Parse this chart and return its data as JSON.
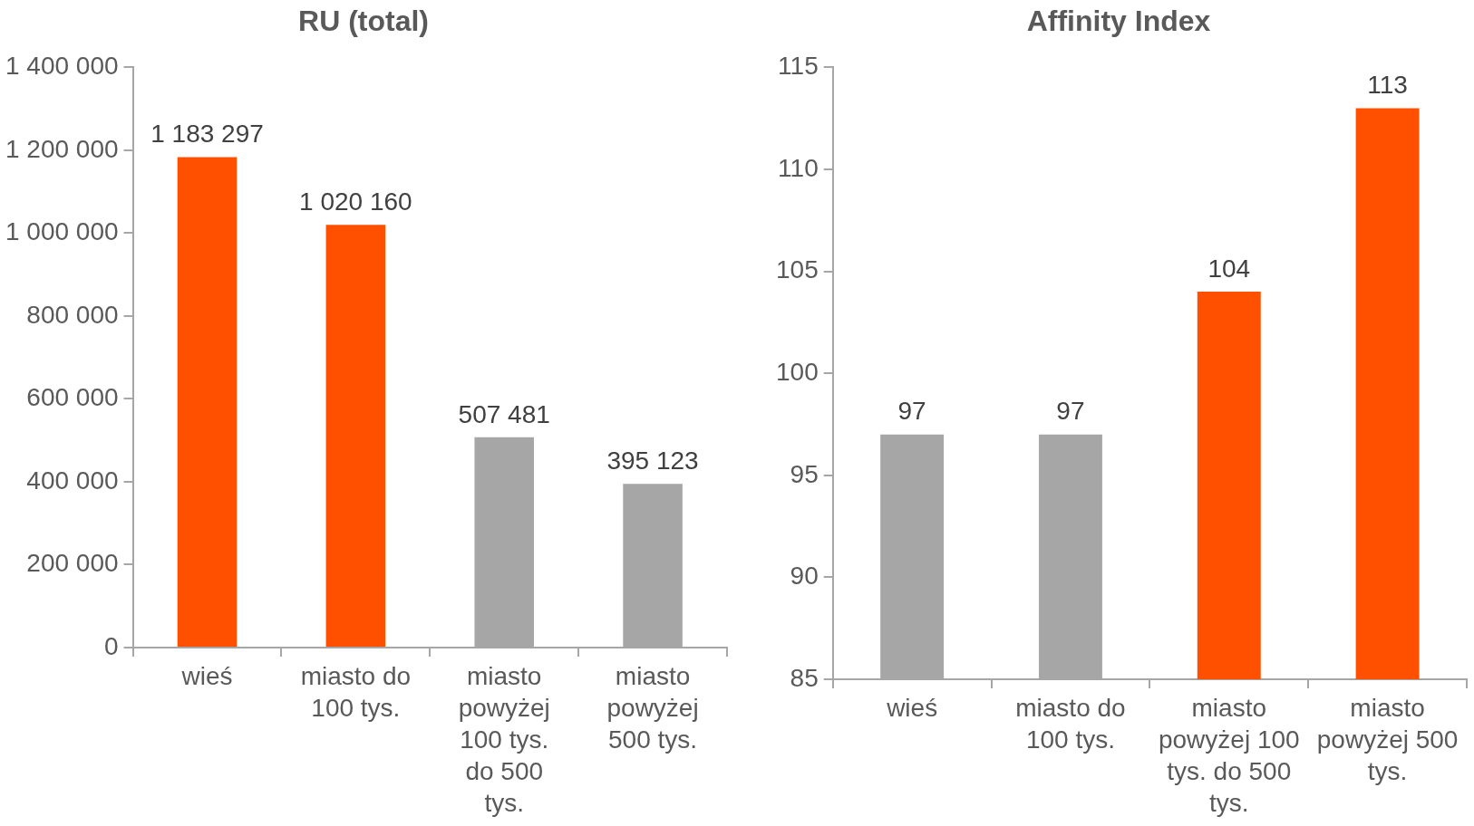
{
  "chart_data": [
    {
      "type": "bar",
      "title": "RU (total)",
      "categories": [
        "wieś",
        "miasto do 100 tys.",
        "miasto powyżej 100 tys. do 500 tys.",
        "miasto powyżej 500 tys."
      ],
      "values": [
        1183297,
        1020160,
        507481,
        395123
      ],
      "colors": [
        "#ff5000",
        "#ff5000",
        "#a6a6a6",
        "#a6a6a6"
      ],
      "ylim": [
        0,
        1400000
      ],
      "yticks": [
        0,
        {
          "value": 200000,
          "label": "200 000"
        },
        {
          "value": 400000,
          "label": "400 000"
        },
        {
          "value": 600000,
          "label": "600 000"
        },
        {
          "value": 800000,
          "label": "800 000"
        },
        {
          "value": 1000000,
          "label": "1 000 000"
        },
        {
          "value": 1200000,
          "label": "1 200 000"
        },
        {
          "value": 1400000,
          "label": "1 400 000"
        }
      ],
      "value_labels": [
        "1 183 297",
        "1 020 160",
        "507 481",
        "395 123"
      ],
      "grid": false,
      "legend": false
    },
    {
      "type": "bar",
      "title": "Affinity Index",
      "categories": [
        "wieś",
        "miasto do 100 tys.",
        "miasto powyżej 100 tys. do 500 tys.",
        "miasto powyżej 500 tys."
      ],
      "values": [
        97,
        97,
        104,
        113
      ],
      "colors": [
        "#a6a6a6",
        "#a6a6a6",
        "#ff5000",
        "#ff5000"
      ],
      "ylim": [
        85,
        115
      ],
      "yticks": [
        85,
        90,
        95,
        100,
        105,
        110,
        115
      ],
      "data_labels": true,
      "grid": false,
      "legend": false
    }
  ]
}
